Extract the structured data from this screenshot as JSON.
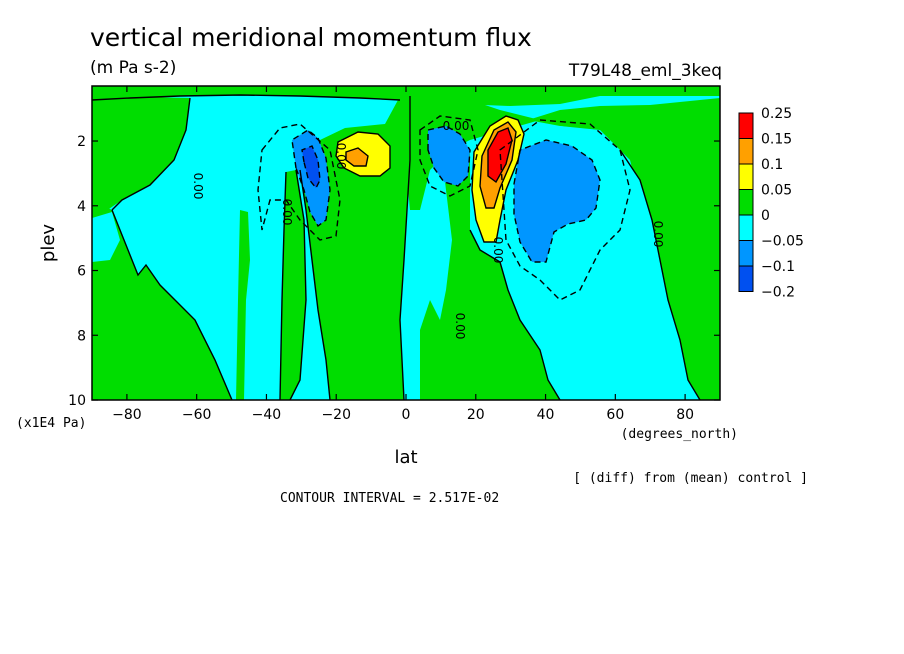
{
  "chart_data": {
    "type": "heatmap",
    "title": "vertical meridional momentum flux",
    "units": "(m Pa s-2)",
    "experiment": "T79L48_eml_3keq",
    "xlabel": "lat",
    "x_units": "(degrees_north)",
    "ylabel": "plev",
    "y_units": "(x1E4 Pa)",
    "xlim": [
      -90,
      90
    ],
    "ylim": [
      10,
      0.3
    ],
    "x_ticks": [
      -80,
      -60,
      -40,
      -20,
      0,
      20,
      40,
      60,
      80
    ],
    "x_tick_labels": [
      "−80",
      "−60",
      "−40",
      "−20",
      "0",
      "20",
      "40",
      "60",
      "80"
    ],
    "y_ticks": [
      2,
      4,
      6,
      8,
      10
    ],
    "y_tick_labels": [
      "2",
      "4",
      "6",
      "8",
      "10"
    ],
    "legend": {
      "position": "right",
      "levels": [
        "0.25",
        "0.15",
        "0.1",
        "0.05",
        "0",
        "−0.05",
        "−0.1",
        "−0.2"
      ],
      "colors": [
        "#ff0000",
        "#ffa000",
        "#ffff00",
        "#00dd00",
        "#00ffff",
        "#0096ff",
        "#0050f0"
      ]
    },
    "contour_labels": [
      "0.00",
      "0.00",
      "0.00",
      "0.00",
      "0.00",
      "0.00",
      "0.00"
    ],
    "diff_note": "[ (diff) from (mean) control ]",
    "contour_interval": "CONTOUR INTERVAL = 2.517E-02",
    "features": [
      {
        "lat": 25,
        "plev": 2.3,
        "value": 0.25
      },
      {
        "lat": 24,
        "plev": 3.6,
        "value": 0.1
      },
      {
        "lat": -17,
        "plev": 2.3,
        "value": 0.1
      },
      {
        "lat": -27,
        "plev": 2.5,
        "value": -0.1
      },
      {
        "lat": 10,
        "plev": 2.3,
        "value": -0.1
      },
      {
        "lat": 42,
        "plev": 3.8,
        "value": -0.1
      }
    ]
  }
}
